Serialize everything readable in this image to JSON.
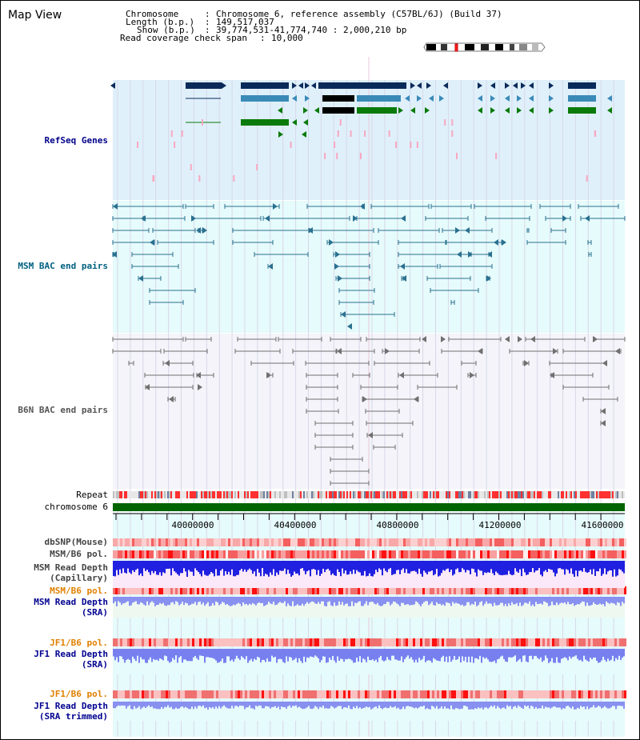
{
  "header": {
    "title": "Map View",
    "chromosome_label": "Chromosome",
    "chromosome_value": "Chromosome 6, reference assembly (C57BL/6J) (Build 37)",
    "length_label": "Length (b.p.)",
    "length_value": "149,517,037",
    "show_label": "Show (b.p.)",
    "show_value": "39,774,531-41,774,740 : 2,000,210 bp",
    "coverage_label": "Read coverage check span",
    "coverage_value": "10,000"
  },
  "tracks": {
    "refseq": "RefSeq Genes",
    "msm_bac": "MSM BAC end pairs",
    "b6n_bac": "B6N BAC end pairs",
    "repeat": "Repeat",
    "chromosome": "chromosome 6",
    "dbsnp": "dbSNP(Mouse)",
    "msm_b6_pol": "MSM/B6 pol.",
    "msm_depth_cap_1": "MSM Read Depth",
    "msm_depth_cap_2": "(Capillary)",
    "msm_b6_pol_2": "MSM/B6 pol.",
    "msm_depth_sra_1": "MSM Read Depth",
    "msm_depth_sra_2": "(SRA)",
    "jf1_b6_pol": "JF1/B6 pol.",
    "jf1_depth_sra_1": "JF1 Read Depth",
    "jf1_depth_sra_2": "(SRA)",
    "jf1_b6_pol_2": "JF1/B6 pol.",
    "jf1_depth_trim_1": "JF1 Read Depth",
    "jf1_depth_trim_2": "(SRA trimmed)"
  },
  "axis": {
    "ticks": [
      "40000000",
      "40400000",
      "40800000",
      "41200000",
      "41600000"
    ]
  },
  "colors": {
    "refseq_label": "#00008b",
    "msm_bac_label": "#006080",
    "b6n_bac_label": "#555555",
    "pol_label": "#e08000",
    "depth_label": "#000090",
    "refseq_bg": "#dff0fb",
    "msm_bg": "#e6fbfb",
    "b6n_bg": "#f4f4fa",
    "chromosome": "#006400"
  }
}
